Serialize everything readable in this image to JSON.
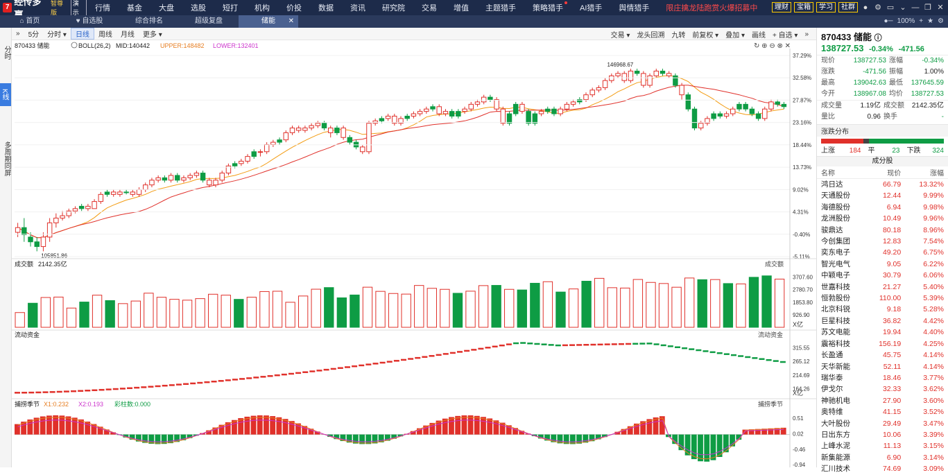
{
  "app": {
    "logo_mark": "7",
    "name": "经传多赢",
    "edition": "智尊版",
    "mode": "演示"
  },
  "nav": [
    "行情",
    "基金",
    "大盘",
    "选股",
    "短打",
    "机构",
    "价投",
    "数据",
    "资讯",
    "研究院",
    "交易",
    "增值",
    "主题猎手",
    "策略猎手",
    "AI猎手",
    "舆情猎手"
  ],
  "promo": "限庄擒龙陆跑赏火爆招募中",
  "top_right": [
    "理财",
    "宝箱",
    "学习",
    "社群"
  ],
  "tabs": [
    "首页",
    "自选股",
    "综合排名",
    "超级复盘",
    "储能"
  ],
  "tab_favorite": "♥",
  "zoom": "100%",
  "left_strip": [
    "分时",
    "K线",
    "多周期同屏"
  ],
  "toolbar": {
    "nav_arrow": "»",
    "periods": [
      "5分",
      "分时 ▾",
      "日线",
      "周线",
      "月线",
      "更多 ▾"
    ],
    "active_period": "日线",
    "right": [
      "交易 ▾",
      "龙头回溯",
      "九转",
      "前复权 ▾",
      "叠加 ▾",
      "画线",
      "+ 自选 ▾",
      "»"
    ]
  },
  "indicator": {
    "symbol": "870433 储能",
    "name": "BOLL(26,2)",
    "mid": "MID:140442",
    "upper": "UPPER:148482",
    "lower": "LOWER:132401"
  },
  "colors": {
    "up": "#e0302a",
    "down": "#0e9c44",
    "ma1": "#f39c12",
    "ma2": "#e0302a",
    "upper": "#e67e22",
    "lower": "#cc33cc"
  },
  "chart_data": [
    {
      "type": "candlestick",
      "title": "870433 储能",
      "y_axis_pct": [
        "37.29%",
        "32.58%",
        "27.87%",
        "23.16%",
        "18.44%",
        "13.73%",
        "9.02%",
        "4.31%",
        "-0.40%",
        "-5.11%"
      ],
      "ylim": [
        -5.11,
        37.29
      ],
      "high_label": "146968.67",
      "low_label": "105851.86",
      "candles": [
        [
          0,
          1,
          2,
          -1,
          1
        ],
        [
          1,
          -0.5,
          3,
          -2,
          0
        ],
        [
          -1,
          -2,
          0,
          -3,
          0
        ],
        [
          -2,
          -3,
          -1,
          -4,
          0
        ],
        [
          -3,
          -1,
          0,
          -4,
          1
        ],
        [
          -1,
          2,
          3,
          -2,
          1
        ],
        [
          2,
          3,
          4,
          1,
          1
        ],
        [
          3,
          3.5,
          4.5,
          2.5,
          1
        ],
        [
          3.5,
          4.5,
          5,
          3,
          1
        ],
        [
          4.5,
          5,
          5.5,
          4,
          1
        ],
        [
          5,
          5.5,
          6,
          4.5,
          0
        ],
        [
          5.5,
          5,
          6,
          4.5,
          1
        ],
        [
          5,
          6.5,
          7,
          5,
          1
        ],
        [
          6.5,
          8,
          8.5,
          6,
          1
        ],
        [
          8,
          8.5,
          9,
          7.5,
          0
        ],
        [
          8.5,
          8,
          9,
          7.5,
          1
        ],
        [
          8,
          8.5,
          9,
          7.5,
          1
        ],
        [
          8.5,
          8.5,
          9,
          8,
          0
        ],
        [
          8.5,
          8,
          9,
          7.5,
          1
        ],
        [
          8,
          9,
          9.5,
          7.5,
          1
        ],
        [
          9,
          10,
          10.5,
          8.5,
          1
        ],
        [
          10,
          11,
          11.5,
          9.5,
          1
        ],
        [
          11,
          11.5,
          12,
          10.5,
          1
        ],
        [
          11.5,
          11,
          12,
          10.5,
          0
        ],
        [
          11,
          12,
          12.5,
          10.5,
          1
        ],
        [
          12,
          11,
          12.5,
          10.5,
          0
        ],
        [
          11,
          11.5,
          12,
          10.5,
          1
        ],
        [
          11.5,
          12,
          12.5,
          11,
          1
        ],
        [
          12,
          12.5,
          13,
          11.5,
          1
        ],
        [
          12.5,
          11,
          13,
          10.5,
          0
        ],
        [
          11,
          10,
          11.5,
          9.5,
          1
        ],
        [
          10,
          11,
          11.5,
          9.5,
          1
        ],
        [
          11,
          12.5,
          13,
          10.5,
          1
        ],
        [
          12.5,
          14,
          14.5,
          12,
          1
        ],
        [
          14,
          14.5,
          15,
          13.5,
          0
        ],
        [
          14.5,
          15,
          15.5,
          14,
          1
        ],
        [
          15,
          16,
          16.5,
          14.5,
          1
        ],
        [
          16,
          17,
          17.5,
          15.5,
          0
        ],
        [
          17,
          17,
          17.5,
          16,
          1
        ],
        [
          17,
          18.5,
          19,
          16.5,
          1
        ],
        [
          18.5,
          19,
          19.5,
          18,
          1
        ],
        [
          19,
          19.5,
          20,
          18.5,
          0
        ],
        [
          19.5,
          21,
          21.5,
          19,
          1
        ],
        [
          21,
          22,
          22.5,
          20.5,
          1
        ],
        [
          22,
          21.5,
          22.5,
          21,
          1
        ],
        [
          21.5,
          22,
          22.5,
          21,
          1
        ],
        [
          22,
          22.5,
          23,
          21.5,
          1
        ],
        [
          22.5,
          23,
          23.5,
          22,
          1
        ],
        [
          23,
          22,
          23.5,
          21.5,
          0
        ],
        [
          22,
          21,
          22.5,
          20,
          1
        ],
        [
          21,
          22,
          22.5,
          20.5,
          0
        ],
        [
          22,
          20,
          22.5,
          19.5,
          1
        ],
        [
          20,
          19,
          20.5,
          18.5,
          0
        ],
        [
          19,
          18,
          19.5,
          17.5,
          0
        ],
        [
          18,
          17,
          18.5,
          16.5,
          1
        ],
        [
          17,
          23,
          23.5,
          16.5,
          1
        ],
        [
          23,
          23.5,
          24,
          22.5,
          1
        ],
        [
          23.5,
          24,
          24.5,
          23,
          0
        ],
        [
          24,
          24.5,
          25,
          23.5,
          1
        ],
        [
          24.5,
          23,
          25,
          22.5,
          1
        ],
        [
          23,
          24,
          24.5,
          22.5,
          1
        ],
        [
          24,
          24.5,
          25,
          23.5,
          0
        ],
        [
          24.5,
          25,
          25.5,
          24,
          1
        ],
        [
          25,
          25.5,
          26,
          24.5,
          1
        ],
        [
          25.5,
          26,
          26.5,
          25,
          1
        ],
        [
          26,
          26.5,
          27,
          25.5,
          0
        ],
        [
          26.5,
          25,
          27,
          24.5,
          1
        ],
        [
          25,
          25.5,
          26,
          24.5,
          1
        ],
        [
          25.5,
          24.5,
          26,
          24,
          0
        ],
        [
          24.5,
          25.5,
          26,
          24,
          0
        ],
        [
          25.5,
          26,
          26.5,
          25,
          1
        ],
        [
          26,
          27,
          27.5,
          25.5,
          1
        ],
        [
          27,
          27.5,
          28,
          26.5,
          1
        ],
        [
          27.5,
          28.5,
          29,
          27,
          1
        ],
        [
          28.5,
          28,
          29,
          27.5,
          0
        ],
        [
          28,
          26,
          28.5,
          25.5,
          1
        ],
        [
          26,
          23,
          26.5,
          22.5,
          1
        ],
        [
          23,
          25,
          25.5,
          22.5,
          0
        ],
        [
          25,
          27,
          27.5,
          24.5,
          0
        ],
        [
          27,
          25.5,
          27.5,
          25,
          1
        ],
        [
          25.5,
          23,
          26,
          22.5,
          0
        ],
        [
          23,
          25,
          25.5,
          22.5,
          0
        ],
        [
          25,
          25.5,
          26,
          24.5,
          1
        ],
        [
          25.5,
          26,
          26.5,
          25,
          0
        ],
        [
          26,
          25,
          26.5,
          24.5,
          0
        ],
        [
          25,
          26,
          26.5,
          24.5,
          1
        ],
        [
          26,
          27,
          27.5,
          25.5,
          1
        ],
        [
          27,
          27.5,
          28,
          26.5,
          1
        ],
        [
          27.5,
          28,
          28.5,
          27,
          0
        ],
        [
          28,
          29,
          29.5,
          27.5,
          1
        ],
        [
          29,
          30,
          30.5,
          28.5,
          1
        ],
        [
          30,
          30.5,
          31,
          29.5,
          1
        ],
        [
          30.5,
          32,
          32.5,
          30,
          1
        ],
        [
          32,
          33,
          33.5,
          31.5,
          1
        ],
        [
          33,
          33.5,
          34,
          32.5,
          1
        ],
        [
          33.5,
          32,
          34,
          31.5,
          1
        ],
        [
          32,
          34,
          34.5,
          31.5,
          1
        ],
        [
          34,
          33.5,
          34.5,
          33,
          0
        ],
        [
          33.5,
          31,
          34,
          30.5,
          1
        ],
        [
          31,
          33,
          33.5,
          30.5,
          1
        ],
        [
          33,
          34,
          34.5,
          32.5,
          1
        ],
        [
          34,
          33.5,
          34.5,
          33,
          0
        ],
        [
          33.5,
          33,
          34,
          32.5,
          1
        ],
        [
          33,
          31,
          33.5,
          30.5,
          0
        ],
        [
          31,
          29,
          31.5,
          28,
          1
        ],
        [
          29,
          26,
          29.5,
          25.5,
          0
        ],
        [
          26,
          22,
          26.5,
          21.5,
          0
        ],
        [
          22,
          23,
          23.5,
          21.5,
          1
        ],
        [
          23,
          24,
          24.5,
          22.5,
          1
        ],
        [
          24,
          25,
          25.5,
          23.5,
          0
        ],
        [
          25,
          24.5,
          25.5,
          24,
          0
        ],
        [
          24.5,
          25,
          25.5,
          24,
          1
        ],
        [
          25,
          26,
          26.5,
          24.5,
          1
        ],
        [
          26,
          27,
          27.5,
          25.5,
          0
        ],
        [
          27,
          26,
          27.5,
          25.5,
          0
        ],
        [
          26,
          25,
          26.5,
          24.5,
          0
        ],
        [
          25,
          24,
          25.5,
          23.5,
          0
        ],
        [
          24,
          26,
          26.5,
          23.5,
          1
        ],
        [
          26,
          27.5,
          28,
          25.5,
          1
        ],
        [
          27.5,
          27,
          28,
          26.5,
          0
        ],
        [
          27,
          26.5,
          27.5,
          26,
          0
        ]
      ]
    },
    {
      "type": "bar",
      "title": "成交额",
      "value_label": "2142.35亿",
      "y_axis": [
        "3707.60",
        "2780.70",
        "1853.80",
        "926.90"
      ],
      "unit": "X亿",
      "ylim": [
        0,
        4200
      ]
    },
    {
      "type": "line",
      "title": "流动资金",
      "y_axis": [
        "315.55",
        "265.12",
        "214.69",
        "164.26"
      ],
      "unit": "X亿"
    },
    {
      "type": "bar",
      "title": "捕捞季节",
      "x1": "X1:0.232",
      "x2": "X2:0.193",
      "cai": "彩柱数:0.000",
      "y_axis": [
        "0.51",
        "0.02",
        "-0.46",
        "-0.94"
      ],
      "ylim": [
        -0.94,
        0.75
      ]
    }
  ],
  "panel": {
    "title": "870433 储能",
    "price": "138727.53",
    "change_pct": "-0.34%",
    "change": "-471.56",
    "quote": [
      [
        "现价",
        "138727.53",
        "涨幅",
        "-0.34%"
      ],
      [
        "涨跌",
        "-471.56",
        "振幅",
        "1.00%"
      ],
      [
        "最高",
        "139042.63",
        "最低",
        "137645.59"
      ],
      [
        "今开",
        "138967.08",
        "均价",
        "138727.53"
      ]
    ],
    "quote2": [
      [
        "成交量",
        "1.19亿",
        "成交额",
        "2142.35亿"
      ],
      [
        "量比",
        "0.96",
        "换手",
        "-"
      ]
    ],
    "dist_title": "涨跌分布",
    "up_label": "上涨",
    "up": "184",
    "flat_label": "平",
    "flat": "23",
    "down_label": "下跌",
    "down": "324",
    "cf_title": "成分股",
    "cf_headers": [
      "名称",
      "现价",
      "涨幅"
    ],
    "components": [
      [
        "鸿日达",
        "66.79",
        "13.32%"
      ],
      [
        "天通股份",
        "12.44",
        "9.99%"
      ],
      [
        "海德股份",
        "6.94",
        "9.98%"
      ],
      [
        "龙洲股份",
        "10.49",
        "9.96%"
      ],
      [
        "骏鼎达",
        "80.18",
        "8.96%"
      ],
      [
        "今创集团",
        "12.83",
        "7.54%"
      ],
      [
        "奕东电子",
        "49.20",
        "6.75%"
      ],
      [
        "智光电气",
        "9.05",
        "6.22%"
      ],
      [
        "中颖电子",
        "30.79",
        "6.06%"
      ],
      [
        "世嘉科技",
        "21.27",
        "5.40%"
      ],
      [
        "恒勃股份",
        "110.00",
        "5.39%"
      ],
      [
        "北京科锐",
        "9.18",
        "5.28%"
      ],
      [
        "巨星科技",
        "36.82",
        "4.42%"
      ],
      [
        "苏文电能",
        "19.94",
        "4.40%"
      ],
      [
        "震裕科技",
        "156.19",
        "4.25%"
      ],
      [
        "长盈通",
        "45.75",
        "4.14%"
      ],
      [
        "天华新能",
        "52.11",
        "4.14%"
      ],
      [
        "瑞华泰",
        "18.46",
        "3.77%"
      ],
      [
        "伊戈尔",
        "32.33",
        "3.62%"
      ],
      [
        "神驰机电",
        "27.90",
        "3.60%"
      ],
      [
        "奥特维",
        "41.15",
        "3.52%"
      ],
      [
        "大叶股份",
        "29.49",
        "3.47%"
      ],
      [
        "日出东方",
        "10.06",
        "3.39%"
      ],
      [
        "上峰水泥",
        "11.13",
        "3.15%"
      ],
      [
        "新集能源",
        "6.90",
        "3.14%"
      ],
      [
        "汇川技术",
        "74.69",
        "3.09%"
      ]
    ]
  }
}
